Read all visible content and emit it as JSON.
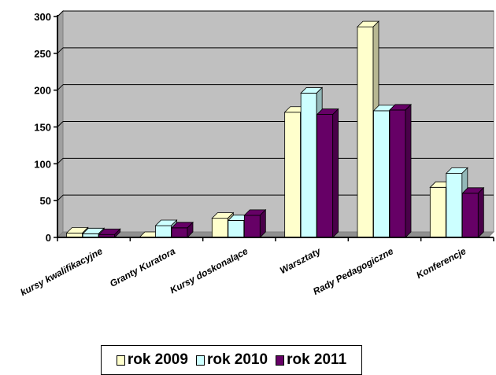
{
  "chart_data": {
    "type": "bar",
    "categories": [
      "kursy kwalifikacyjne",
      "Granty Kuratora",
      "Kursy doskonalące",
      "Warsztaty",
      "Rady Pedagogiczne",
      "Konferencje"
    ],
    "series": [
      {
        "name": "rok 2009",
        "values": [
          6,
          0,
          26,
          170,
          286,
          68
        ],
        "color": "#FFFFCC"
      },
      {
        "name": "rok 2010",
        "values": [
          5,
          16,
          23,
          196,
          172,
          87
        ],
        "color": "#CCFFFF"
      },
      {
        "name": "rok 2011",
        "values": [
          4,
          13,
          30,
          167,
          173,
          60
        ],
        "color": "#660066"
      }
    ],
    "yticks": [
      "0",
      "50",
      "100",
      "150",
      "200",
      "250",
      "300"
    ],
    "ylim": [
      0,
      300
    ],
    "grid": true,
    "legend_position": "bottom",
    "title": "",
    "xlabel": "",
    "ylabel": "",
    "plot_background": "#C0C0C0"
  }
}
